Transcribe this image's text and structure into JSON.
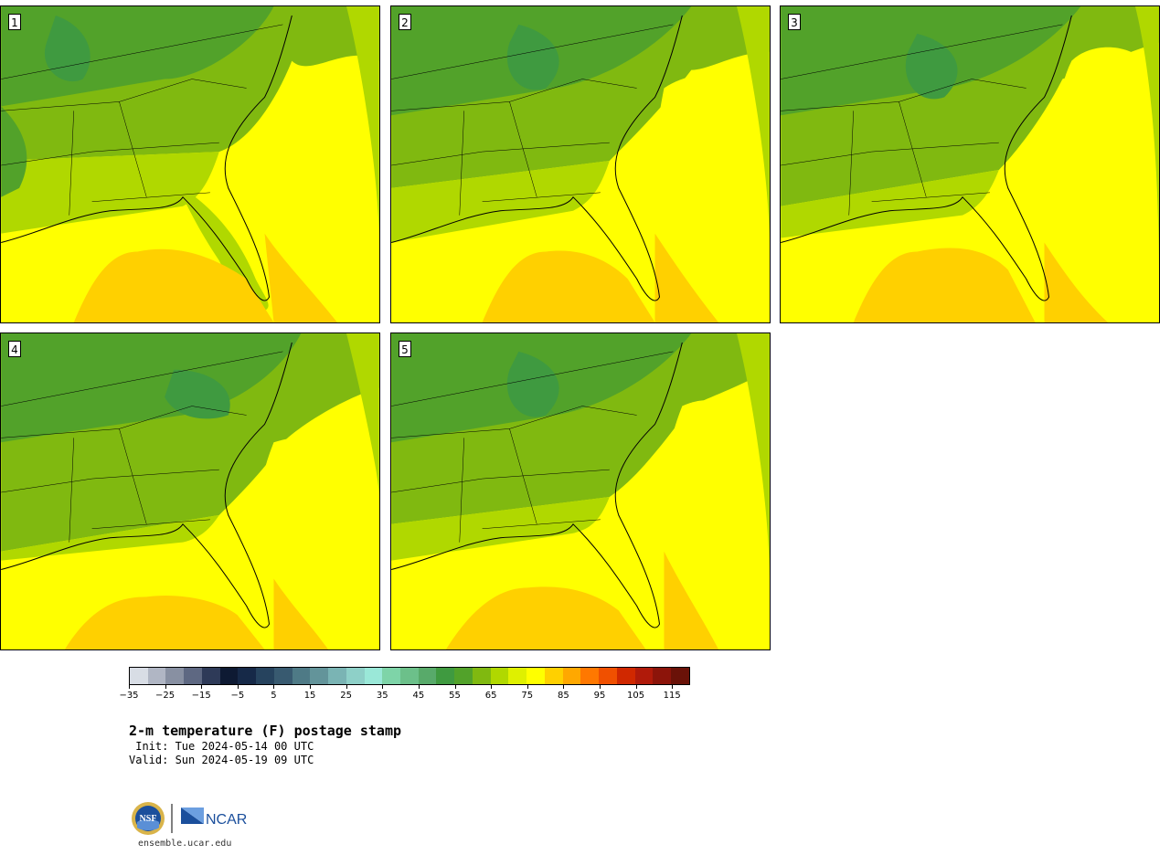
{
  "panels": [
    {
      "label": "1"
    },
    {
      "label": "2"
    },
    {
      "label": "3"
    },
    {
      "label": "4"
    },
    {
      "label": "5"
    }
  ],
  "colorbar": {
    "colors": [
      "#d8dde5",
      "#b0b6c4",
      "#8890a2",
      "#5e6882",
      "#2e3a58",
      "#0e1a33",
      "#162948",
      "#26435e",
      "#385a70",
      "#4e7a86",
      "#63949a",
      "#7ab4b4",
      "#8ed0c8",
      "#9ae8d8",
      "#7ed4a8",
      "#6cc08a",
      "#58aa6a",
      "#3f9a40",
      "#52a22a",
      "#80b910",
      "#b0d800",
      "#dff000",
      "#ffff00",
      "#ffd000",
      "#ffa800",
      "#ff7800",
      "#f05000",
      "#d02800",
      "#b01a0a",
      "#8c140a",
      "#6a1208"
    ],
    "ticks": [
      "−35",
      "−25",
      "−15",
      "−5",
      "5",
      "15",
      "25",
      "35",
      "45",
      "55",
      "65",
      "75",
      "85",
      "95",
      "105",
      "115"
    ],
    "min": -35,
    "max": 120
  },
  "title": "2-m temperature (F) postage stamp",
  "init_line": " Init: Tue 2024-05-14 00 UTC",
  "valid_line": "Valid: Sun 2024-05-19 09 UTC",
  "logos": {
    "left": "NSF",
    "right": "NCAR"
  },
  "site": "ensemble.ucar.edu"
}
